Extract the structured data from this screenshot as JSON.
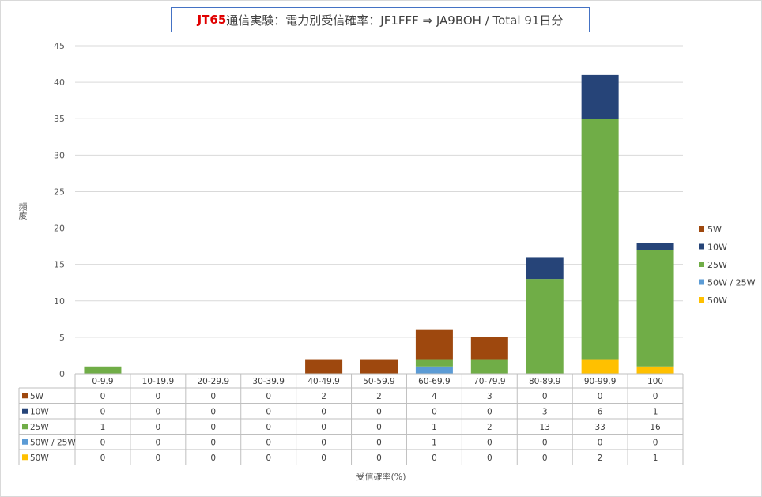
{
  "title": {
    "accent": "JT65",
    "rest": "通信実験：電力別受信確率：JF1FFF ⇒ JA9BOH / Total 91日分"
  },
  "chart_data": {
    "type": "bar",
    "stacked": true,
    "ylabel": "頻度",
    "xlabel": "受信確率(%)",
    "ylim": [
      0,
      45
    ],
    "yticks": [
      0,
      5,
      10,
      15,
      20,
      25,
      30,
      35,
      40,
      45
    ],
    "grid": true,
    "legend_position": "right",
    "categories": [
      "0-9.9",
      "10-19.9",
      "20-29.9",
      "30-39.9",
      "40-49.9",
      "50-59.9",
      "60-69.9",
      "70-79.9",
      "80-89.9",
      "90-99.9",
      "100"
    ],
    "series": [
      {
        "name": "5W",
        "color": "#9e480e",
        "values": [
          0,
          0,
          0,
          0,
          2,
          2,
          4,
          3,
          0,
          0,
          0
        ]
      },
      {
        "name": "10W",
        "color": "#264478",
        "values": [
          0,
          0,
          0,
          0,
          0,
          0,
          0,
          0,
          3,
          6,
          1
        ]
      },
      {
        "name": "25W",
        "color": "#70ad47",
        "values": [
          1,
          0,
          0,
          0,
          0,
          0,
          1,
          2,
          13,
          33,
          16
        ]
      },
      {
        "name": "50W / 25W",
        "color": "#5b9bd5",
        "values": [
          0,
          0,
          0,
          0,
          0,
          0,
          1,
          0,
          0,
          0,
          0
        ]
      },
      {
        "name": "50W",
        "color": "#ffc000",
        "values": [
          0,
          0,
          0,
          0,
          0,
          0,
          0,
          0,
          0,
          2,
          1
        ]
      }
    ]
  }
}
